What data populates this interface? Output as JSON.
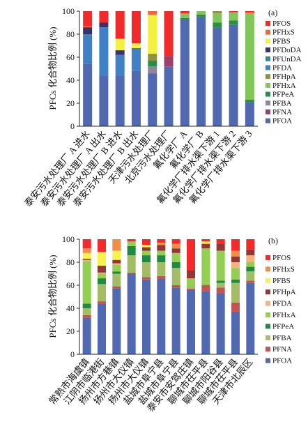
{
  "chart_data": [
    {
      "type": "bar",
      "stacked": true,
      "panel_label": "(a)",
      "ylabel": "PFCs 化合物比例 (%)",
      "ylim": [
        0,
        100
      ],
      "yticks": [
        0,
        20,
        40,
        60,
        80,
        100
      ],
      "grid": false,
      "legend_position": "right",
      "categories": [
        "泰安污水处理厂 A 进水",
        "泰安污水处理厂 A 出水",
        "泰安污水处理厂 B 进水",
        "泰安污水处理厂 B 出水",
        "天津污水处理厂",
        "北京污水处理厂",
        "氟化学厂 A",
        "氟化学厂 B",
        "氟化学厂排水渠下游 1",
        "氟化学厂排水渠下游 2",
        "氟化学厂排水渠下游 3"
      ],
      "series": [
        {
          "name": "PFOA",
          "color": "#5069B1",
          "values": [
            54,
            44,
            44,
            48,
            46,
            52,
            93,
            95,
            86,
            88,
            21
          ]
        },
        {
          "name": "PFNA",
          "color": "#9B4068",
          "values": [
            0,
            0,
            0,
            0,
            0,
            9,
            0,
            0,
            0,
            0,
            0
          ]
        },
        {
          "name": "PFBA",
          "color": "#8C879B",
          "values": [
            0,
            0,
            0,
            0,
            6,
            0,
            0,
            0,
            0,
            0,
            0
          ]
        },
        {
          "name": "PFPeA",
          "color": "#2C8C4A",
          "values": [
            0,
            0,
            0,
            0,
            5,
            0,
            1,
            2,
            4,
            4,
            2
          ]
        },
        {
          "name": "PFHxA",
          "color": "#82C55A",
          "values": [
            0,
            0,
            0,
            0,
            0,
            0,
            4,
            3,
            8,
            7,
            75
          ]
        },
        {
          "name": "PFHpA",
          "color": "#8A9444",
          "values": [
            0,
            0,
            0,
            0,
            6,
            0,
            0,
            0,
            2,
            0,
            0
          ]
        },
        {
          "name": "PFDA",
          "color": "#3F80C6",
          "values": [
            25,
            42,
            18,
            20,
            0,
            0,
            0,
            0,
            0,
            0,
            0
          ]
        },
        {
          "name": "PFUnDA",
          "color": "#2D8E92",
          "values": [
            1,
            0,
            0,
            0,
            0,
            0,
            0,
            0,
            0,
            0,
            0
          ]
        },
        {
          "name": "PFDoDA",
          "color": "#36336E",
          "values": [
            6,
            4,
            4,
            0,
            0,
            0,
            0,
            0,
            0,
            0,
            0
          ]
        },
        {
          "name": "PFBS",
          "color": "#F4F040",
          "values": [
            0,
            0,
            10,
            4,
            34,
            0,
            0,
            0,
            0,
            0,
            0
          ]
        },
        {
          "name": "PFHxS",
          "color": "#F0663A",
          "values": [
            1,
            0,
            0,
            0,
            3,
            0,
            0,
            0,
            0,
            0,
            1
          ]
        },
        {
          "name": "PFOS",
          "color": "#F22A2A",
          "values": [
            13,
            10,
            24,
            28,
            0,
            39,
            2,
            0,
            0,
            1,
            1
          ]
        }
      ]
    },
    {
      "type": "bar",
      "stacked": true,
      "panel_label": "(b)",
      "ylabel": "PFCs 化合物比例 (%)",
      "ylim": [
        0,
        100
      ],
      "yticks": [
        0,
        20,
        40,
        60,
        80,
        100
      ],
      "grid": false,
      "legend_position": "right",
      "categories": [
        "常熟市海虞镇",
        "江阴市临港街",
        "扬州市方巷镇",
        "扬州市大仪镇",
        "扬州市大仪镇",
        "盐城市阜宁县",
        "盐城市阜宁县",
        "泰安市安驾庄镇",
        "聊城市茌平县",
        "聊城市阳谷县",
        "聊城市茌平县",
        "天津市北辰区"
      ],
      "series": [
        {
          "name": "PFOA",
          "color": "#5069B1",
          "values": [
            32,
            44,
            57,
            70,
            65,
            66,
            58,
            56,
            55,
            53,
            37,
            62
          ]
        },
        {
          "name": "PFNA",
          "color": "#C25552",
          "values": [
            2,
            2,
            2,
            1,
            2,
            2,
            2,
            1,
            5,
            5,
            8,
            2
          ]
        },
        {
          "name": "PFBA",
          "color": "#A3BD66",
          "values": [
            6,
            15,
            11,
            15,
            13,
            12,
            15,
            3,
            2,
            4,
            17,
            8
          ]
        },
        {
          "name": "PFPeA",
          "color": "#1F8A42",
          "values": [
            4,
            5,
            2,
            8,
            6,
            6,
            5,
            0,
            0,
            2,
            3,
            4
          ]
        },
        {
          "name": "PFHxA",
          "color": "#92CF52",
          "values": [
            37,
            4,
            6,
            4,
            4,
            4,
            8,
            6,
            30,
            26,
            10,
            4
          ]
        },
        {
          "name": "PFDA",
          "color": "#F6B27C",
          "values": [
            1,
            1,
            1,
            0,
            0,
            0,
            0,
            0,
            0,
            0,
            5,
            6
          ]
        },
        {
          "name": "PFHpA",
          "color": "#933736",
          "values": [
            1,
            6,
            3,
            0,
            3,
            5,
            4,
            7,
            4,
            6,
            5,
            5
          ]
        },
        {
          "name": "PFBS",
          "color": "#FAF24C",
          "values": [
            5,
            12,
            8,
            0,
            2,
            0,
            0,
            0,
            2,
            0,
            0,
            0
          ]
        },
        {
          "name": "PFHxS",
          "color": "#F28D48",
          "values": [
            4,
            0,
            10,
            0,
            0,
            2,
            4,
            0,
            0,
            0,
            5,
            0
          ]
        },
        {
          "name": "PFOS",
          "color": "#F22A2A",
          "values": [
            8,
            11,
            0,
            2,
            5,
            3,
            4,
            27,
            2,
            4,
            10,
            9
          ]
        }
      ]
    }
  ]
}
